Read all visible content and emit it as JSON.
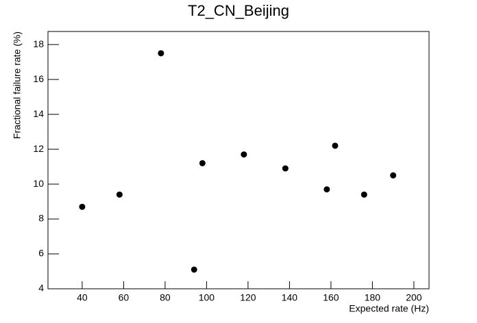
{
  "chart_data": {
    "type": "scatter",
    "title": "T2_CN_Beijing",
    "x_label": "Expected rate (Hz)",
    "y_label": "Fractional failure rate (%)",
    "x": [
      40,
      58,
      78,
      94,
      98,
      118,
      138,
      158,
      162,
      176,
      190
    ],
    "values": [
      8.7,
      9.4,
      17.5,
      5.1,
      11.2,
      11.7,
      10.9,
      9.7,
      12.2,
      9.4,
      10.5
    ],
    "color": "#000000",
    "xlim": [
      23.5,
      207.3
    ],
    "ylim": [
      4,
      18.75
    ],
    "xticks": [
      40,
      60,
      80,
      100,
      120,
      140,
      160,
      180,
      200
    ],
    "yticks": [
      4,
      6,
      8,
      10,
      12,
      14,
      16,
      18
    ],
    "grid": false
  }
}
